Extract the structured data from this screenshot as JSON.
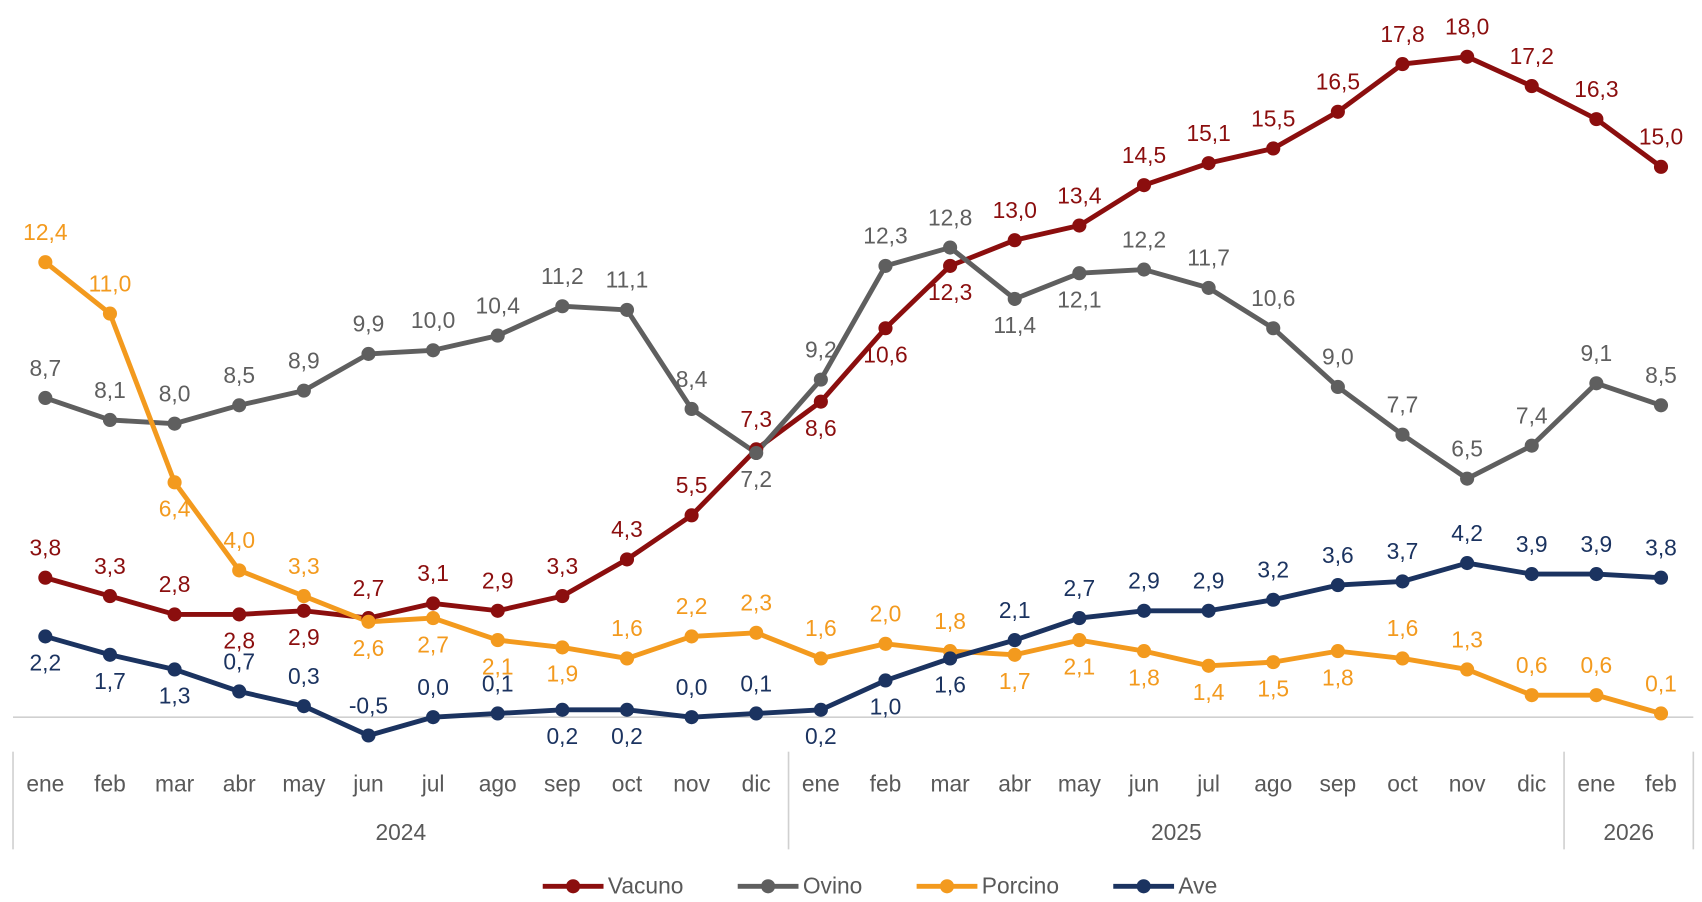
{
  "chart_data": {
    "type": "line",
    "category_groups": [
      {
        "name": "2024",
        "categories": [
          "ene",
          "feb",
          "mar",
          "abr",
          "may",
          "jun",
          "jul",
          "ago",
          "sep",
          "oct",
          "nov",
          "dic"
        ]
      },
      {
        "name": "2025",
        "categories": [
          "ene",
          "feb",
          "mar",
          "abr",
          "may",
          "jun",
          "jul",
          "ago",
          "sep",
          "oct",
          "nov",
          "dic"
        ]
      },
      {
        "name": "2026",
        "categories": [
          "ene",
          "feb"
        ]
      }
    ],
    "ylim": [
      -1,
      19
    ],
    "series": [
      {
        "name": "Vacuno",
        "color": "#8b0e0e",
        "values": [
          3.8,
          3.3,
          2.8,
          2.8,
          2.9,
          2.7,
          3.1,
          2.9,
          3.3,
          4.3,
          5.5,
          7.3,
          8.6,
          10.6,
          12.3,
          13.0,
          13.4,
          14.5,
          15.1,
          15.5,
          16.5,
          17.8,
          18.0,
          17.2,
          16.3,
          15.0
        ],
        "value_labels": [
          "3,8",
          "3,3",
          "2,8",
          "2,8",
          "2,9",
          "2,7",
          "3,1",
          "2,9",
          "3,3",
          "4,3",
          "5,5",
          "7,3",
          "8,6",
          "10,6",
          "12,3",
          "13,0",
          "13,4",
          "14,5",
          "15,1",
          "15,5",
          "16,5",
          "17,8",
          "18,0",
          "17,2",
          "16,3",
          "15,0"
        ]
      },
      {
        "name": "Ovino",
        "color": "#5f5f5f",
        "values": [
          8.7,
          8.1,
          8.0,
          8.5,
          8.9,
          9.9,
          10.0,
          10.4,
          11.2,
          11.1,
          8.4,
          7.2,
          9.2,
          12.3,
          12.8,
          11.4,
          12.1,
          12.2,
          11.7,
          10.6,
          9.0,
          7.7,
          6.5,
          7.4,
          9.1,
          8.5
        ],
        "value_labels": [
          "8,7",
          "8,1",
          "8,0",
          "8,5",
          "8,9",
          "9,9",
          "10,0",
          "10,4",
          "11,2",
          "11,1",
          "8,4",
          "7,2",
          "9,2",
          "12,3",
          "12,8",
          "11,4",
          "12,1",
          "12,2",
          "11,7",
          "10,6",
          "9,0",
          "7,7",
          "6,5",
          "7,4",
          "9,1",
          "8,5"
        ]
      },
      {
        "name": "Porcino",
        "color": "#f39a1e",
        "values": [
          12.4,
          11.0,
          6.4,
          4.0,
          3.3,
          2.6,
          2.7,
          2.1,
          1.9,
          1.6,
          2.2,
          2.3,
          1.6,
          2.0,
          1.8,
          1.7,
          2.1,
          1.8,
          1.4,
          1.5,
          1.8,
          1.6,
          1.3,
          0.6,
          0.6,
          0.1
        ],
        "value_labels": [
          "12,4",
          "11,0",
          "6,4",
          "4,0",
          "3,3",
          "2,6",
          "2,7",
          "2,1",
          "1,9",
          "1,6",
          "2,2",
          "2,3",
          "1,6",
          "2,0",
          "1,8",
          "1,7",
          "2,1",
          "1,8",
          "1,4",
          "1,5",
          "1,8",
          "1,6",
          "1,3",
          "0,6",
          "0,6",
          "0,1"
        ]
      },
      {
        "name": "Ave",
        "color": "#1b3360",
        "values": [
          2.2,
          1.7,
          1.3,
          0.7,
          0.3,
          -0.5,
          0.0,
          0.1,
          0.2,
          0.2,
          0.0,
          0.1,
          0.2,
          1.0,
          1.6,
          2.1,
          2.7,
          2.9,
          2.9,
          3.2,
          3.6,
          3.7,
          4.2,
          3.9,
          3.9,
          3.8
        ],
        "value_labels": [
          "2,2",
          "1,7",
          "1,3",
          "0,7",
          "0,3",
          "-0,5",
          "0,0",
          "0,1",
          "0,2",
          "0,2",
          "0,0",
          "0,1",
          "0,2",
          "1,0",
          "1,6",
          "2,1",
          "2,7",
          "2,9",
          "2,9",
          "3,2",
          "3,6",
          "3,7",
          "4,2",
          "3,9",
          "3,9",
          "3,8"
        ]
      }
    ]
  }
}
